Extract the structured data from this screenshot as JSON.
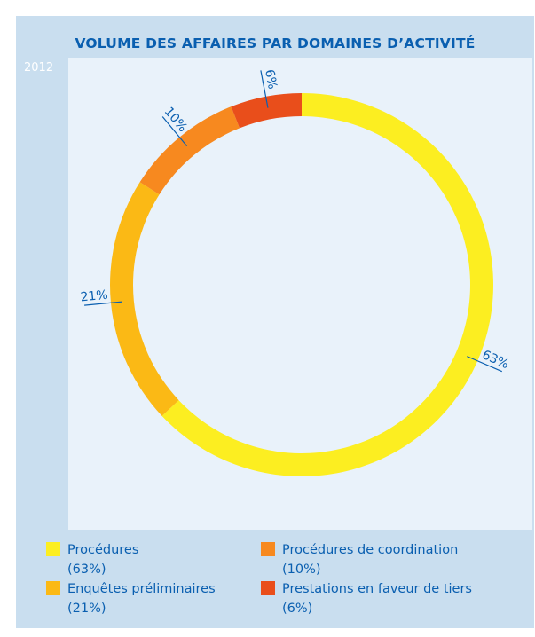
{
  "chart_data": {
    "type": "pie",
    "variant": "donut",
    "title": "VOLUME DES AFFAIRES PAR DOMAINES D’ACTIVITÉ",
    "period_label": "2012",
    "start_angle_deg": 0,
    "direction": "clockwise",
    "slices": [
      {
        "name": "Procédures",
        "value": 63,
        "label": "63%",
        "legend_pct": "(63%)",
        "color": "#fcee21"
      },
      {
        "name": "Enquêtes préliminaires",
        "value": 21,
        "label": "21%",
        "legend_pct": "(21%)",
        "color": "#fbb915"
      },
      {
        "name": "Procédures de coordination",
        "value": 10,
        "label": "10%",
        "legend_pct": "(10%)",
        "color": "#f7891f"
      },
      {
        "name": "Prestations en faveur de tiers",
        "value": 6,
        "label": "6%",
        "legend_pct": "(6%)",
        "color": "#e94e1b"
      }
    ],
    "legend_position": "bottom"
  },
  "colors": {
    "frame_background": "#c9deef",
    "plot_background": "#e9f2fa",
    "text_accent": "#0a5fb0"
  }
}
